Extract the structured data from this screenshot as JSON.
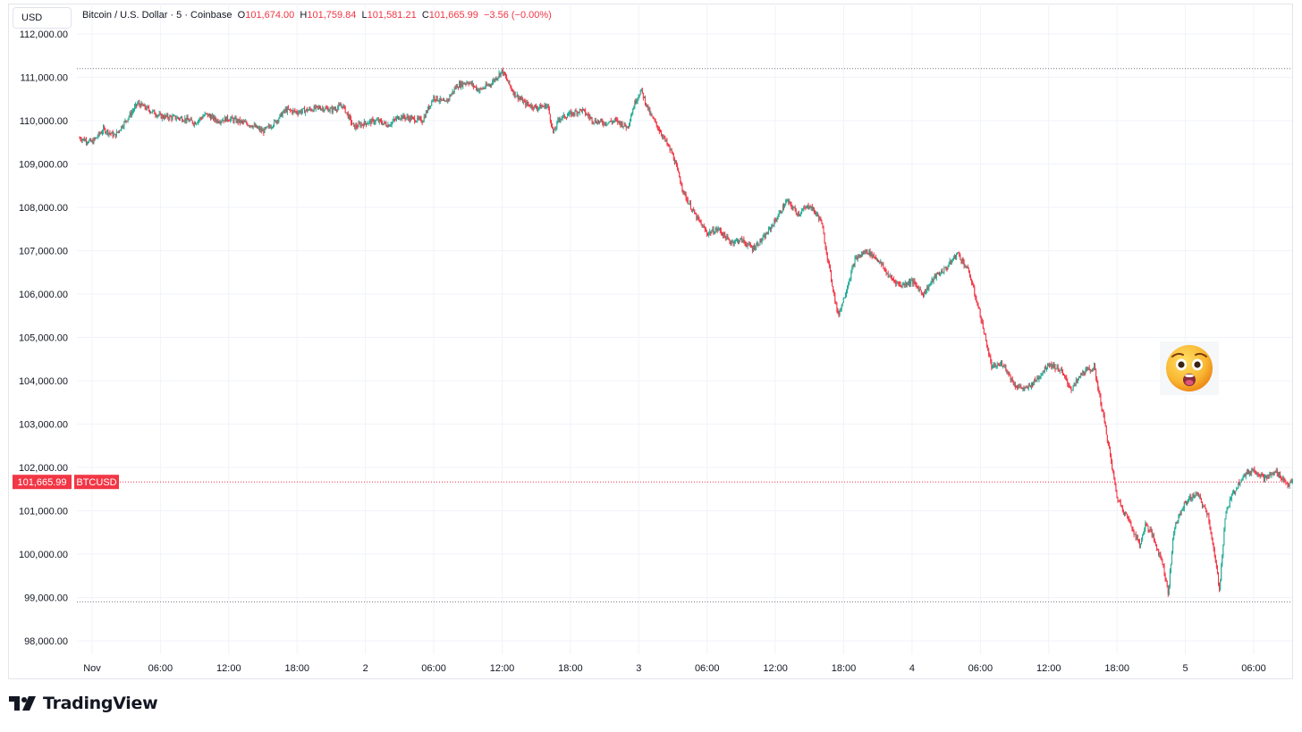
{
  "toolbar": {
    "currency_label": "USD"
  },
  "legend": {
    "symbol": "Bitcoin / U.S. Dollar · 5 · Coinbase",
    "open_key": "O",
    "open": "101,674.00",
    "high_key": "H",
    "high": "101,759.84",
    "low_key": "L",
    "low": "101,581.21",
    "close_key": "C",
    "close": "101,665.99",
    "change": "−3.56 (−0.00%)"
  },
  "brand": {
    "name": "TradingView"
  },
  "colors": {
    "up": "#22ab94",
    "down": "#f23645",
    "price_label": "#f23645",
    "grid": "#f0f3fa"
  },
  "annotation": {
    "icon": "astonished-face-emoji-icon"
  },
  "chart_data": {
    "type": "candlestick",
    "symbol": "BTCUSD",
    "interval": "5",
    "exchange": "Coinbase",
    "ylim": [
      97500,
      112300
    ],
    "y_ticks": [
      98000,
      99000,
      100000,
      101000,
      102000,
      103000,
      104000,
      105000,
      106000,
      107000,
      108000,
      109000,
      110000,
      111000,
      112000
    ],
    "y_tick_labels": [
      "98,000.00",
      "99,000.00",
      "100,000.00",
      "101,000.00",
      "102,000.00",
      "103,000.00",
      "104,000.00",
      "105,000.00",
      "106,000.00",
      "107,000.00",
      "108,000.00",
      "109,000.00",
      "110,000.00",
      "111,000.00",
      "112,000.00"
    ],
    "x_labels": [
      "Nov",
      "06:00",
      "12:00",
      "18:00",
      "2",
      "06:00",
      "12:00",
      "18:00",
      "3",
      "06:00",
      "12:00",
      "18:00",
      "4",
      "06:00",
      "12:00",
      "18:00",
      "5",
      "06:00"
    ],
    "x_label_hours": [
      0,
      6,
      12,
      18,
      24,
      30,
      36,
      42,
      48,
      54,
      60,
      66,
      72,
      78,
      84,
      90,
      96,
      102
    ],
    "time_range_hours": [
      -1.2,
      105.5
    ],
    "last_price": 101665.99,
    "last_price_label": "101,665.99",
    "last_symbol_label": "BTCUSD",
    "range_high": 111200,
    "range_low": 98900,
    "price_path": [
      [
        -1.1,
        109600
      ],
      [
        0,
        109500
      ],
      [
        1,
        109800
      ],
      [
        2,
        109650
      ],
      [
        3.5,
        110200
      ],
      [
        4,
        110400
      ],
      [
        5,
        110250
      ],
      [
        6,
        110100
      ],
      [
        8,
        110050
      ],
      [
        9,
        109950
      ],
      [
        10,
        110150
      ],
      [
        11,
        110000
      ],
      [
        12,
        110050
      ],
      [
        14,
        109900
      ],
      [
        15,
        109750
      ],
      [
        16,
        109950
      ],
      [
        17,
        110250
      ],
      [
        18,
        110200
      ],
      [
        20,
        110300
      ],
      [
        21,
        110250
      ],
      [
        22,
        110350
      ],
      [
        23,
        109850
      ],
      [
        24,
        109950
      ],
      [
        25,
        110000
      ],
      [
        26,
        109900
      ],
      [
        27,
        110100
      ],
      [
        28,
        110050
      ],
      [
        29,
        110000
      ],
      [
        30,
        110550
      ],
      [
        31,
        110400
      ],
      [
        32,
        110800
      ],
      [
        33,
        110900
      ],
      [
        34,
        110700
      ],
      [
        35,
        110850
      ],
      [
        36,
        111150
      ],
      [
        36.5,
        110900
      ],
      [
        37,
        110650
      ],
      [
        38,
        110400
      ],
      [
        39,
        110300
      ],
      [
        40,
        110350
      ],
      [
        40.5,
        109700
      ],
      [
        41,
        110050
      ],
      [
        42,
        110150
      ],
      [
        43,
        110250
      ],
      [
        44,
        110000
      ],
      [
        45,
        109950
      ],
      [
        46,
        110000
      ],
      [
        47,
        109850
      ],
      [
        47.7,
        110450
      ],
      [
        48.2,
        110700
      ],
      [
        49,
        110150
      ],
      [
        50,
        109700
      ],
      [
        51,
        109200
      ],
      [
        52,
        108300
      ],
      [
        53,
        107800
      ],
      [
        54,
        107400
      ],
      [
        55,
        107500
      ],
      [
        56,
        107200
      ],
      [
        57,
        107250
      ],
      [
        58,
        107050
      ],
      [
        59,
        107300
      ],
      [
        60,
        107700
      ],
      [
        61,
        108150
      ],
      [
        62,
        107850
      ],
      [
        63,
        108050
      ],
      [
        64,
        107700
      ],
      [
        65,
        106200
      ],
      [
        65.5,
        105500
      ],
      [
        66,
        105900
      ],
      [
        67,
        106800
      ],
      [
        68,
        107000
      ],
      [
        69,
        106800
      ],
      [
        70,
        106400
      ],
      [
        71,
        106200
      ],
      [
        72,
        106300
      ],
      [
        73,
        106000
      ],
      [
        74,
        106400
      ],
      [
        75,
        106600
      ],
      [
        76,
        106950
      ],
      [
        77,
        106500
      ],
      [
        78,
        105500
      ],
      [
        79,
        104300
      ],
      [
        80,
        104400
      ],
      [
        81,
        103900
      ],
      [
        82,
        103800
      ],
      [
        83,
        104050
      ],
      [
        84,
        104400
      ],
      [
        85,
        104250
      ],
      [
        86,
        103800
      ],
      [
        87,
        104200
      ],
      [
        88,
        104300
      ],
      [
        88.5,
        103600
      ],
      [
        89,
        102900
      ],
      [
        90,
        101300
      ],
      [
        91,
        100800
      ],
      [
        92,
        100200
      ],
      [
        92.5,
        100700
      ],
      [
        93,
        100500
      ],
      [
        94,
        99800
      ],
      [
        94.5,
        99100
      ],
      [
        95,
        100600
      ],
      [
        96,
        101200
      ],
      [
        97,
        101400
      ],
      [
        98,
        100900
      ],
      [
        99,
        99200
      ],
      [
        99.5,
        100900
      ],
      [
        100,
        101300
      ],
      [
        101,
        101800
      ],
      [
        102,
        101950
      ],
      [
        103,
        101750
      ],
      [
        104,
        101900
      ],
      [
        105,
        101600
      ],
      [
        105.4,
        101666
      ]
    ]
  }
}
